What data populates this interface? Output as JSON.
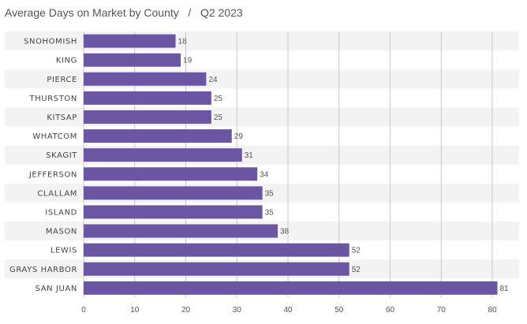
{
  "chart_data": {
    "type": "bar",
    "orientation": "horizontal",
    "title": "Average Days on Market by County",
    "subtitle": "Q2 2023",
    "title_separator": "/",
    "categories": [
      "SNOHOMISH",
      "KING",
      "PIERCE",
      "THURSTON",
      "KITSAP",
      "WHATCOM",
      "SKAGIT",
      "JEFFERSON",
      "CLALLAM",
      "ISLAND",
      "MASON",
      "LEWIS",
      "GRAYS HARBOR",
      "SAN JUAN"
    ],
    "values": [
      18,
      19,
      24,
      25,
      25,
      29,
      31,
      34,
      35,
      35,
      38,
      52,
      52,
      81
    ],
    "xlim": [
      0,
      82
    ],
    "xticks": [
      0,
      10,
      20,
      30,
      40,
      50,
      60,
      70,
      80
    ],
    "grid": true,
    "legend": "none",
    "colors": {
      "bar": "#6a56a3",
      "stripe": "#f3f3f3",
      "grid": "#c8c8c8"
    }
  }
}
